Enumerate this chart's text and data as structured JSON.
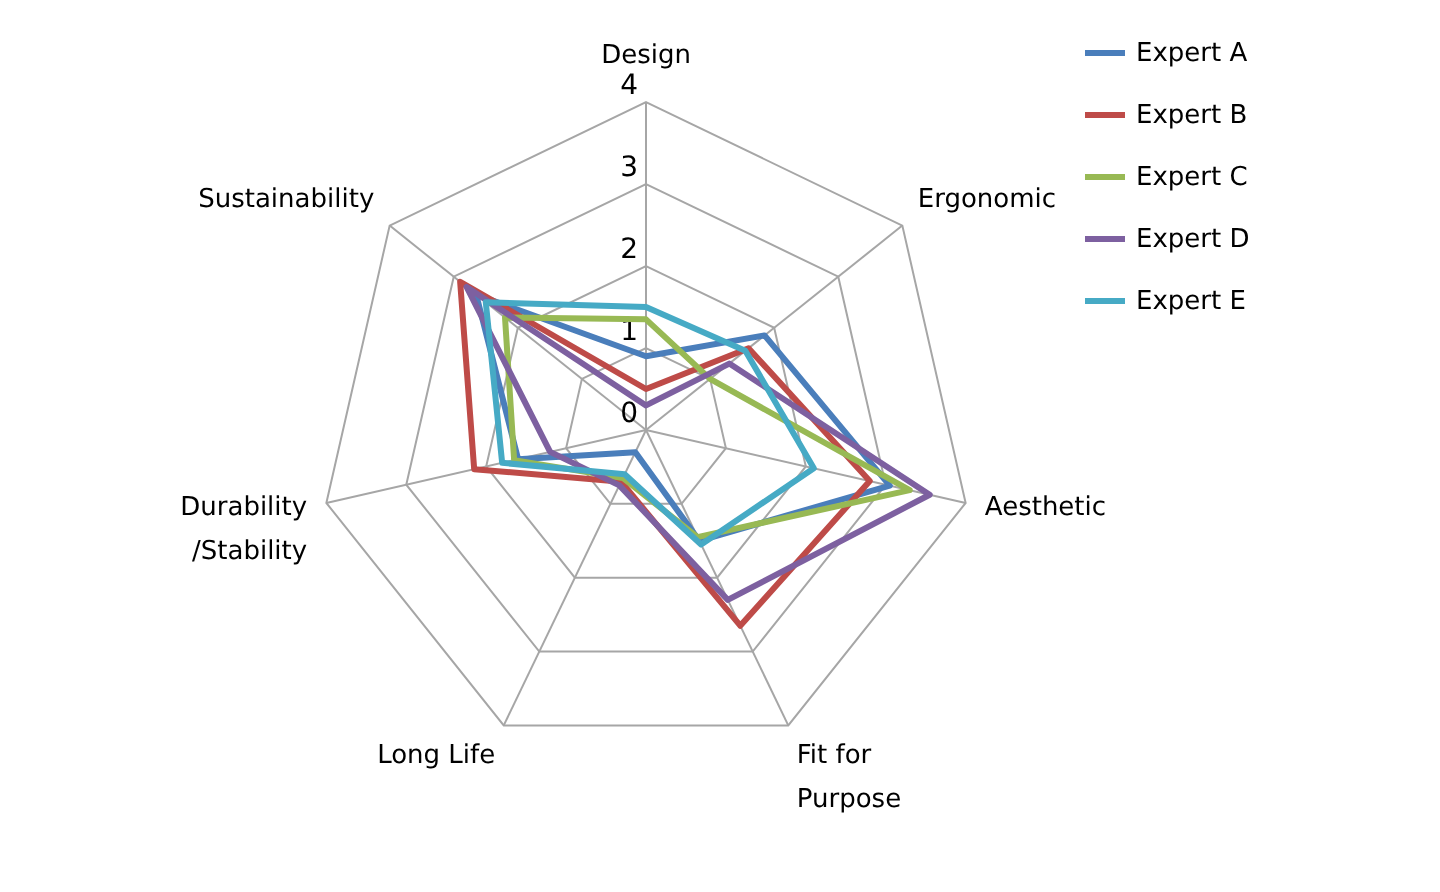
{
  "chart_data": {
    "type": "radar",
    "categories": [
      "Design",
      "Ergonomic",
      "Aesthetic",
      "Fit for\nPurpose",
      "Long Life",
      "Durability\n/Stability",
      "Sustainability"
    ],
    "series": [
      {
        "name": "Expert A",
        "color": "#4a7ebb",
        "values": [
          0.9,
          1.85,
          3.05,
          1.5,
          0.3,
          1.6,
          2.65
        ]
      },
      {
        "name": "Expert B",
        "color": "#be4b48",
        "values": [
          0.5,
          1.6,
          2.8,
          2.65,
          0.7,
          2.15,
          2.9
        ]
      },
      {
        "name": "Expert C",
        "color": "#98b954",
        "values": [
          1.35,
          1.0,
          3.3,
          1.45,
          0.65,
          1.65,
          2.2
        ]
      },
      {
        "name": "Expert D",
        "color": "#7d60a0",
        "values": [
          0.3,
          1.3,
          3.55,
          2.3,
          0.75,
          1.2,
          2.8
        ]
      },
      {
        "name": "Expert E",
        "color": "#46aac5",
        "values": [
          1.5,
          1.55,
          2.1,
          1.55,
          0.6,
          1.8,
          2.5
        ]
      }
    ],
    "ylim": [
      0,
      4
    ],
    "yticks": [
      0,
      1,
      2,
      3,
      4
    ],
    "grid": true,
    "legend": "right",
    "line_style": "solid",
    "marker": "none"
  }
}
